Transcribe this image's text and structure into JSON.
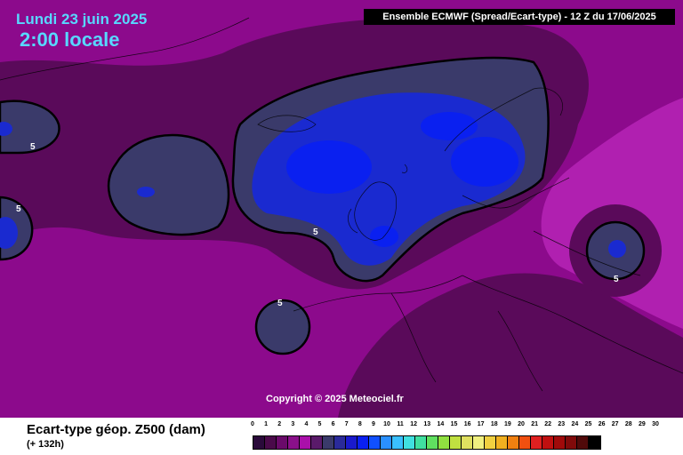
{
  "header": {
    "date": "Lundi 23 juin 2025",
    "time": "2:00 locale",
    "model": "Ensemble ECMWF  (Spread/Ecart-type) - 12 Z du 17/06/2025"
  },
  "map": {
    "copyright": "Copyright © 2025 Meteociel.fr",
    "contour_value": "5",
    "colors": {
      "background_magenta": "#8c0a8c",
      "dark_purple": "#5a0a5a",
      "bright_magenta": "#b020b0",
      "contour_slate": "#3a3a6a",
      "inner_blue": "#1a2ad0",
      "deep_blue": "#0a20f0"
    }
  },
  "footer": {
    "variable_title": "Ecart-type géop. Z500 (dam)",
    "lead_time": "(+ 132h)"
  },
  "scale": {
    "ticks": [
      "0",
      "1",
      "2",
      "3",
      "4",
      "5",
      "6",
      "7",
      "8",
      "9",
      "10",
      "11",
      "12",
      "13",
      "14",
      "15",
      "16",
      "17",
      "18",
      "19",
      "20",
      "21",
      "22",
      "23",
      "24",
      "25",
      "26",
      "27",
      "28",
      "29",
      "30"
    ],
    "swatch_colors": [
      "#2a0a3a",
      "#4a0a4a",
      "#6a0a6a",
      "#8a108a",
      "#aa10aa",
      "#5a1a6a",
      "#3a3a6a",
      "#2a2a9a",
      "#1a1acc",
      "#0a20f0",
      "#1050ff",
      "#2a90ff",
      "#3ac0ff",
      "#40e0e0",
      "#40e0a0",
      "#60e060",
      "#90e040",
      "#c0e040",
      "#e0e060",
      "#f0f080",
      "#f0d040",
      "#f0b020",
      "#f08010",
      "#f05010",
      "#e02020",
      "#c01010",
      "#a00a0a",
      "#800a0a",
      "#500a0a",
      "#000000"
    ]
  }
}
